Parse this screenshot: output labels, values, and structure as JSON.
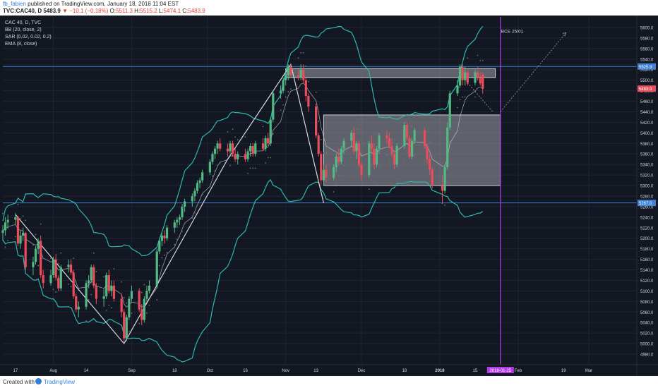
{
  "header": {
    "username": "fb_fabien",
    "published": "published on TradingView.com, January 18, 2018 11:04 EST",
    "symbol": "TVC:CAC40, D",
    "last": "5483.9",
    "change": "−10.1 (−0.18%)",
    "o_label": "O:",
    "o": "5511.3",
    "h_label": "H:",
    "h": "5515.2",
    "l_label": "L:",
    "l": "5474.1",
    "c_label": "C:",
    "c": "5483.9"
  },
  "legend": {
    "title": "CAC 40, D, TVC",
    "bb": "BB (20, close, 2)",
    "sar": "SAR (0.02, 0.02, 0.2)",
    "ema": "EMA (8, close)"
  },
  "footer": {
    "created": "Created with",
    "brand": "TradingView"
  },
  "colors": {
    "background": "#131722",
    "up": "#53b987",
    "down": "#eb4d5c",
    "bollinger": "#2bbab0",
    "ema": "#c3c6ce",
    "sar": "#6b7180",
    "marker": "#b23be8",
    "level": "#3f82d6",
    "axis_text": "#d1d4dc"
  },
  "chart_data": {
    "type": "candlestick",
    "title": "CAC 40, D, TVC",
    "ylim": [
      4960,
      5620
    ],
    "y_ticks": [
      4980,
      5000,
      5020,
      5040,
      5060,
      5080,
      5100,
      5120,
      5140,
      5160,
      5180,
      5200,
      5220,
      5240,
      5260,
      5280,
      5300,
      5320,
      5340,
      5360,
      5380,
      5400,
      5420,
      5440,
      5460,
      5480,
      5500,
      5520,
      5540,
      5560,
      5580,
      5600
    ],
    "x_ticks": [
      "17",
      "Aug",
      "14",
      "Sep",
      "18",
      "Oct",
      "16",
      "Nov",
      "13",
      "Dec",
      "18",
      "2018",
      "15",
      "Feb",
      "19",
      "Mar"
    ],
    "x_range": [
      "2017-07-12",
      "2018-03-20"
    ],
    "price_labels": [
      {
        "value": 5525.9,
        "text": "5525.9",
        "color": "#3f82d6"
      },
      {
        "value": 5483.9,
        "text": "5483.9",
        "color": "#eb4d5c"
      },
      {
        "value": 5267.0,
        "text": "5267.0",
        "color": "#3f82d6"
      }
    ],
    "vertical_marker": {
      "date": "2018-01-25",
      "label": "2018-01-25"
    },
    "annotation": {
      "date": "2018-01-25",
      "value": 5590,
      "text": "BCE 25/01"
    },
    "levels": [
      5525.9,
      5267.0
    ],
    "rectangles": [
      {
        "from": "2017-11-01",
        "to": "2018-01-23",
        "top": 5522,
        "bottom": 5505
      },
      {
        "from": "2017-11-16",
        "to": "2018-01-25",
        "top": 5434,
        "bottom": 5300
      }
    ],
    "candles": [
      {
        "d": "2017-07-12",
        "o": 5210,
        "h": 5225,
        "l": 5195,
        "c": 5215
      },
      {
        "d": "2017-07-13",
        "o": 5215,
        "h": 5240,
        "l": 5205,
        "c": 5230
      },
      {
        "d": "2017-07-14",
        "o": 5230,
        "h": 5245,
        "l": 5218,
        "c": 5235
      },
      {
        "d": "2017-07-17",
        "o": 5235,
        "h": 5248,
        "l": 5225,
        "c": 5240
      },
      {
        "d": "2017-07-18",
        "o": 5240,
        "h": 5242,
        "l": 5185,
        "c": 5190
      },
      {
        "d": "2017-07-19",
        "o": 5190,
        "h": 5215,
        "l": 5180,
        "c": 5205
      },
      {
        "d": "2017-07-20",
        "o": 5205,
        "h": 5220,
        "l": 5195,
        "c": 5210
      },
      {
        "d": "2017-07-21",
        "o": 5210,
        "h": 5212,
        "l": 5140,
        "c": 5145
      },
      {
        "d": "2017-07-24",
        "o": 5145,
        "h": 5165,
        "l": 5130,
        "c": 5155
      },
      {
        "d": "2017-07-25",
        "o": 5155,
        "h": 5185,
        "l": 5150,
        "c": 5180
      },
      {
        "d": "2017-07-26",
        "o": 5180,
        "h": 5200,
        "l": 5170,
        "c": 5195
      },
      {
        "d": "2017-07-27",
        "o": 5195,
        "h": 5205,
        "l": 5125,
        "c": 5130
      },
      {
        "d": "2017-07-28",
        "o": 5130,
        "h": 5140,
        "l": 5105,
        "c": 5115
      },
      {
        "d": "2017-07-31",
        "o": 5115,
        "h": 5140,
        "l": 5110,
        "c": 5130
      },
      {
        "d": "2017-08-01",
        "o": 5130,
        "h": 5165,
        "l": 5125,
        "c": 5160
      },
      {
        "d": "2017-08-02",
        "o": 5160,
        "h": 5170,
        "l": 5120,
        "c": 5125
      },
      {
        "d": "2017-08-03",
        "o": 5125,
        "h": 5130,
        "l": 5100,
        "c": 5105
      },
      {
        "d": "2017-08-04",
        "o": 5105,
        "h": 5150,
        "l": 5100,
        "c": 5145
      },
      {
        "d": "2017-08-07",
        "o": 5145,
        "h": 5160,
        "l": 5135,
        "c": 5150
      },
      {
        "d": "2017-08-08",
        "o": 5150,
        "h": 5160,
        "l": 5130,
        "c": 5135
      },
      {
        "d": "2017-08-09",
        "o": 5135,
        "h": 5140,
        "l": 5085,
        "c": 5090
      },
      {
        "d": "2017-08-10",
        "o": 5090,
        "h": 5095,
        "l": 5060,
        "c": 5065
      },
      {
        "d": "2017-08-11",
        "o": 5065,
        "h": 5080,
        "l": 5050,
        "c": 5070
      },
      {
        "d": "2017-08-14",
        "o": 5070,
        "h": 5120,
        "l": 5065,
        "c": 5115
      },
      {
        "d": "2017-08-15",
        "o": 5115,
        "h": 5130,
        "l": 5105,
        "c": 5120
      },
      {
        "d": "2017-08-16",
        "o": 5120,
        "h": 5150,
        "l": 5115,
        "c": 5145
      },
      {
        "d": "2017-08-17",
        "o": 5145,
        "h": 5150,
        "l": 5105,
        "c": 5110
      },
      {
        "d": "2017-08-18",
        "o": 5110,
        "h": 5115,
        "l": 5075,
        "c": 5085
      },
      {
        "d": "2017-08-21",
        "o": 5085,
        "h": 5105,
        "l": 5070,
        "c": 5090
      },
      {
        "d": "2017-08-22",
        "o": 5090,
        "h": 5135,
        "l": 5085,
        "c": 5130
      },
      {
        "d": "2017-08-23",
        "o": 5130,
        "h": 5140,
        "l": 5095,
        "c": 5100
      },
      {
        "d": "2017-08-24",
        "o": 5100,
        "h": 5120,
        "l": 5090,
        "c": 5110
      },
      {
        "d": "2017-08-25",
        "o": 5110,
        "h": 5120,
        "l": 5080,
        "c": 5085
      },
      {
        "d": "2017-08-28",
        "o": 5085,
        "h": 5095,
        "l": 5050,
        "c": 5060
      },
      {
        "d": "2017-08-29",
        "o": 5060,
        "h": 5065,
        "l": 5000,
        "c": 5010
      },
      {
        "d": "2017-08-30",
        "o": 5010,
        "h": 5055,
        "l": 5005,
        "c": 5050
      },
      {
        "d": "2017-08-31",
        "o": 5050,
        "h": 5090,
        "l": 5045,
        "c": 5085
      },
      {
        "d": "2017-09-01",
        "o": 5085,
        "h": 5110,
        "l": 5080,
        "c": 5100
      },
      {
        "d": "2017-09-04",
        "o": 5100,
        "h": 5105,
        "l": 5060,
        "c": 5065
      },
      {
        "d": "2017-09-05",
        "o": 5065,
        "h": 5075,
        "l": 5035,
        "c": 5045
      },
      {
        "d": "2017-09-06",
        "o": 5045,
        "h": 5090,
        "l": 5040,
        "c": 5085
      },
      {
        "d": "2017-09-07",
        "o": 5085,
        "h": 5110,
        "l": 5080,
        "c": 5100
      },
      {
        "d": "2017-09-08",
        "o": 5100,
        "h": 5120,
        "l": 5095,
        "c": 5110
      },
      {
        "d": "2017-09-11",
        "o": 5110,
        "h": 5180,
        "l": 5105,
        "c": 5175
      },
      {
        "d": "2017-09-12",
        "o": 5175,
        "h": 5200,
        "l": 5170,
        "c": 5195
      },
      {
        "d": "2017-09-13",
        "o": 5195,
        "h": 5210,
        "l": 5185,
        "c": 5205
      },
      {
        "d": "2017-09-14",
        "o": 5205,
        "h": 5215,
        "l": 5190,
        "c": 5200
      },
      {
        "d": "2017-09-15",
        "o": 5200,
        "h": 5225,
        "l": 5195,
        "c": 5220
      },
      {
        "d": "2017-09-18",
        "o": 5220,
        "h": 5235,
        "l": 5210,
        "c": 5230
      },
      {
        "d": "2017-09-19",
        "o": 5230,
        "h": 5240,
        "l": 5220,
        "c": 5235
      },
      {
        "d": "2017-09-20",
        "o": 5235,
        "h": 5245,
        "l": 5225,
        "c": 5240
      },
      {
        "d": "2017-09-21",
        "o": 5240,
        "h": 5265,
        "l": 5235,
        "c": 5260
      },
      {
        "d": "2017-09-22",
        "o": 5260,
        "h": 5275,
        "l": 5250,
        "c": 5270
      },
      {
        "d": "2017-09-25",
        "o": 5270,
        "h": 5285,
        "l": 5260,
        "c": 5280
      },
      {
        "d": "2017-09-26",
        "o": 5280,
        "h": 5295,
        "l": 5270,
        "c": 5290
      },
      {
        "d": "2017-09-27",
        "o": 5290,
        "h": 5310,
        "l": 5285,
        "c": 5305
      },
      {
        "d": "2017-09-28",
        "o": 5305,
        "h": 5315,
        "l": 5295,
        "c": 5310
      },
      {
        "d": "2017-09-29",
        "o": 5310,
        "h": 5330,
        "l": 5305,
        "c": 5325
      },
      {
        "d": "2017-10-02",
        "o": 5325,
        "h": 5350,
        "l": 5320,
        "c": 5345
      },
      {
        "d": "2017-10-03",
        "o": 5345,
        "h": 5365,
        "l": 5340,
        "c": 5360
      },
      {
        "d": "2017-10-04",
        "o": 5360,
        "h": 5375,
        "l": 5350,
        "c": 5370
      },
      {
        "d": "2017-10-05",
        "o": 5370,
        "h": 5385,
        "l": 5360,
        "c": 5380
      },
      {
        "d": "2017-10-06",
        "o": 5380,
        "h": 5390,
        "l": 5365,
        "c": 5370
      },
      {
        "d": "2017-10-09",
        "o": 5370,
        "h": 5380,
        "l": 5355,
        "c": 5365
      },
      {
        "d": "2017-10-10",
        "o": 5365,
        "h": 5385,
        "l": 5360,
        "c": 5380
      },
      {
        "d": "2017-10-11",
        "o": 5380,
        "h": 5385,
        "l": 5355,
        "c": 5360
      },
      {
        "d": "2017-10-12",
        "o": 5360,
        "h": 5370,
        "l": 5345,
        "c": 5350
      },
      {
        "d": "2017-10-13",
        "o": 5350,
        "h": 5365,
        "l": 5340,
        "c": 5360
      },
      {
        "d": "2017-10-16",
        "o": 5360,
        "h": 5370,
        "l": 5345,
        "c": 5350
      },
      {
        "d": "2017-10-17",
        "o": 5350,
        "h": 5370,
        "l": 5345,
        "c": 5365
      },
      {
        "d": "2017-10-18",
        "o": 5365,
        "h": 5380,
        "l": 5355,
        "c": 5375
      },
      {
        "d": "2017-10-19",
        "o": 5375,
        "h": 5380,
        "l": 5355,
        "c": 5360
      },
      {
        "d": "2017-10-20",
        "o": 5360,
        "h": 5385,
        "l": 5355,
        "c": 5380
      },
      {
        "d": "2017-10-23",
        "o": 5380,
        "h": 5390,
        "l": 5365,
        "c": 5370
      },
      {
        "d": "2017-10-24",
        "o": 5370,
        "h": 5395,
        "l": 5365,
        "c": 5390
      },
      {
        "d": "2017-10-25",
        "o": 5390,
        "h": 5400,
        "l": 5375,
        "c": 5380
      },
      {
        "d": "2017-10-26",
        "o": 5380,
        "h": 5430,
        "l": 5375,
        "c": 5425
      },
      {
        "d": "2017-10-27",
        "o": 5425,
        "h": 5480,
        "l": 5420,
        "c": 5475
      },
      {
        "d": "2017-10-30",
        "o": 5475,
        "h": 5490,
        "l": 5465,
        "c": 5480
      },
      {
        "d": "2017-10-31",
        "o": 5480,
        "h": 5505,
        "l": 5475,
        "c": 5500
      },
      {
        "d": "2017-11-01",
        "o": 5500,
        "h": 5515,
        "l": 5490,
        "c": 5510
      },
      {
        "d": "2017-11-02",
        "o": 5510,
        "h": 5530,
        "l": 5500,
        "c": 5525
      },
      {
        "d": "2017-11-03",
        "o": 5525,
        "h": 5530,
        "l": 5505,
        "c": 5510
      },
      {
        "d": "2017-11-06",
        "o": 5510,
        "h": 5520,
        "l": 5500,
        "c": 5505
      },
      {
        "d": "2017-11-07",
        "o": 5505,
        "h": 5530,
        "l": 5500,
        "c": 5520
      },
      {
        "d": "2017-11-08",
        "o": 5520,
        "h": 5530,
        "l": 5495,
        "c": 5500
      },
      {
        "d": "2017-11-09",
        "o": 5500,
        "h": 5505,
        "l": 5460,
        "c": 5470
      },
      {
        "d": "2017-11-10",
        "o": 5470,
        "h": 5475,
        "l": 5440,
        "c": 5450
      },
      {
        "d": "2017-11-13",
        "o": 5450,
        "h": 5455,
        "l": 5390,
        "c": 5395
      },
      {
        "d": "2017-11-14",
        "o": 5395,
        "h": 5400,
        "l": 5355,
        "c": 5360
      },
      {
        "d": "2017-11-15",
        "o": 5360,
        "h": 5365,
        "l": 5300,
        "c": 5310
      },
      {
        "d": "2017-11-16",
        "o": 5310,
        "h": 5340,
        "l": 5300,
        "c": 5330
      },
      {
        "d": "2017-11-17",
        "o": 5330,
        "h": 5340,
        "l": 5305,
        "c": 5315
      },
      {
        "d": "2017-11-20",
        "o": 5315,
        "h": 5340,
        "l": 5310,
        "c": 5335
      },
      {
        "d": "2017-11-21",
        "o": 5335,
        "h": 5360,
        "l": 5325,
        "c": 5355
      },
      {
        "d": "2017-11-22",
        "o": 5355,
        "h": 5370,
        "l": 5340,
        "c": 5345
      },
      {
        "d": "2017-11-23",
        "o": 5345,
        "h": 5375,
        "l": 5340,
        "c": 5370
      },
      {
        "d": "2017-11-24",
        "o": 5370,
        "h": 5390,
        "l": 5360,
        "c": 5385
      },
      {
        "d": "2017-11-27",
        "o": 5385,
        "h": 5405,
        "l": 5375,
        "c": 5400
      },
      {
        "d": "2017-11-28",
        "o": 5400,
        "h": 5410,
        "l": 5360,
        "c": 5365
      },
      {
        "d": "2017-11-29",
        "o": 5365,
        "h": 5385,
        "l": 5350,
        "c": 5380
      },
      {
        "d": "2017-11-30",
        "o": 5380,
        "h": 5385,
        "l": 5335,
        "c": 5340
      },
      {
        "d": "2017-12-01",
        "o": 5340,
        "h": 5345,
        "l": 5310,
        "c": 5320
      },
      {
        "d": "2017-12-04",
        "o": 5320,
        "h": 5385,
        "l": 5315,
        "c": 5380
      },
      {
        "d": "2017-12-05",
        "o": 5380,
        "h": 5395,
        "l": 5360,
        "c": 5370
      },
      {
        "d": "2017-12-06",
        "o": 5370,
        "h": 5380,
        "l": 5330,
        "c": 5340
      },
      {
        "d": "2017-12-07",
        "o": 5340,
        "h": 5375,
        "l": 5335,
        "c": 5370
      },
      {
        "d": "2017-12-08",
        "o": 5370,
        "h": 5400,
        "l": 5360,
        "c": 5395
      },
      {
        "d": "2017-12-11",
        "o": 5395,
        "h": 5405,
        "l": 5380,
        "c": 5390
      },
      {
        "d": "2017-12-12",
        "o": 5390,
        "h": 5400,
        "l": 5370,
        "c": 5375
      },
      {
        "d": "2017-12-13",
        "o": 5375,
        "h": 5390,
        "l": 5355,
        "c": 5360
      },
      {
        "d": "2017-12-14",
        "o": 5360,
        "h": 5365,
        "l": 5330,
        "c": 5340
      },
      {
        "d": "2017-12-15",
        "o": 5340,
        "h": 5380,
        "l": 5335,
        "c": 5375
      },
      {
        "d": "2017-12-18",
        "o": 5375,
        "h": 5420,
        "l": 5370,
        "c": 5415
      },
      {
        "d": "2017-12-19",
        "o": 5415,
        "h": 5420,
        "l": 5385,
        "c": 5390
      },
      {
        "d": "2017-12-20",
        "o": 5390,
        "h": 5395,
        "l": 5350,
        "c": 5355
      },
      {
        "d": "2017-12-21",
        "o": 5355,
        "h": 5390,
        "l": 5350,
        "c": 5385
      },
      {
        "d": "2017-12-22",
        "o": 5385,
        "h": 5410,
        "l": 5380,
        "c": 5405
      },
      {
        "d": "2017-12-26",
        "o": 5405,
        "h": 5410,
        "l": 5370,
        "c": 5375
      },
      {
        "d": "2017-12-27",
        "o": 5375,
        "h": 5380,
        "l": 5340,
        "c": 5350
      },
      {
        "d": "2017-12-28",
        "o": 5350,
        "h": 5360,
        "l": 5320,
        "c": 5330
      },
      {
        "d": "2017-12-29",
        "o": 5330,
        "h": 5335,
        "l": 5295,
        "c": 5300
      },
      {
        "d": "2018-01-02",
        "o": 5300,
        "h": 5320,
        "l": 5265,
        "c": 5290
      },
      {
        "d": "2018-01-03",
        "o": 5290,
        "h": 5340,
        "l": 5285,
        "c": 5335
      },
      {
        "d": "2018-01-04",
        "o": 5335,
        "h": 5420,
        "l": 5330,
        "c": 5410
      },
      {
        "d": "2018-01-05",
        "o": 5410,
        "h": 5480,
        "l": 5405,
        "c": 5475
      },
      {
        "d": "2018-01-08",
        "o": 5475,
        "h": 5500,
        "l": 5470,
        "c": 5490
      },
      {
        "d": "2018-01-09",
        "o": 5490,
        "h": 5530,
        "l": 5485,
        "c": 5525
      },
      {
        "d": "2018-01-10",
        "o": 5525,
        "h": 5530,
        "l": 5490,
        "c": 5500
      },
      {
        "d": "2018-01-11",
        "o": 5500,
        "h": 5525,
        "l": 5490,
        "c": 5515
      },
      {
        "d": "2018-01-12",
        "o": 5515,
        "h": 5520,
        "l": 5490,
        "c": 5495
      },
      {
        "d": "2018-01-15",
        "o": 5495,
        "h": 5520,
        "l": 5490,
        "c": 5515
      },
      {
        "d": "2018-01-16",
        "o": 5515,
        "h": 5525,
        "l": 5500,
        "c": 5505
      },
      {
        "d": "2018-01-17",
        "o": 5505,
        "h": 5515,
        "l": 5490,
        "c": 5494
      },
      {
        "d": "2018-01-18",
        "o": 5511.3,
        "h": 5515.2,
        "l": 5474.1,
        "c": 5483.9
      }
    ]
  }
}
